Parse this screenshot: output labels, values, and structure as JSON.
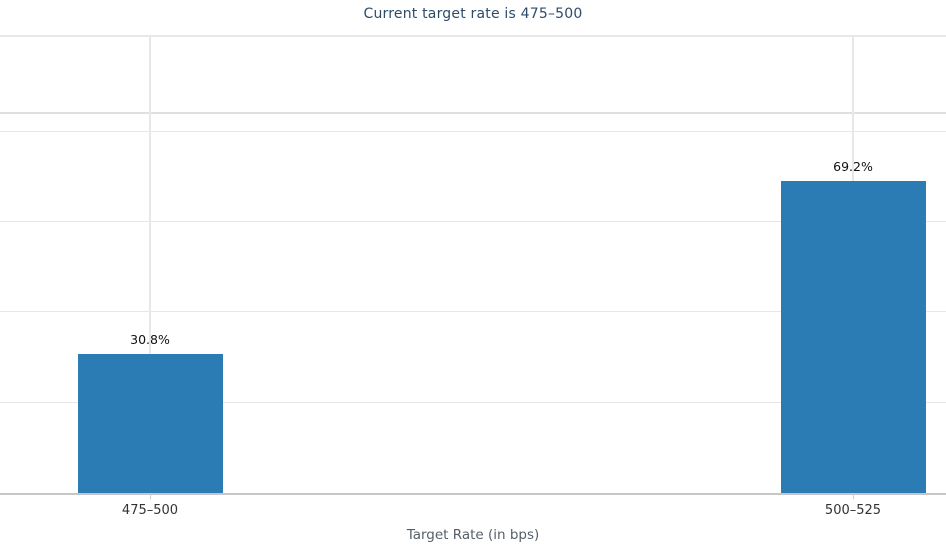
{
  "chart_data": {
    "type": "bar",
    "title": "Current target rate is 475–500",
    "xlabel": "Target Rate (in bps)",
    "ylabel": "",
    "categories": [
      "475–500",
      "500–525"
    ],
    "values": [
      30.8,
      69.2
    ],
    "data_labels": [
      "30.8%",
      "69.2%"
    ],
    "ylim": [
      0,
      101
    ],
    "ytick_values": [
      20,
      40,
      60,
      80
    ],
    "extra_gridline_value": 84,
    "yaxis_labels_visible": false,
    "grid": "horizontal gridlines at 20% steps plus vertical gridline at each category center",
    "legend": "none",
    "colors": {
      "bar": "#2b7cb5",
      "title_text": "#2d4b69",
      "tick_label_text": "#333333",
      "axis_title_text": "#555f69",
      "data_label_text": "#111111",
      "gridline": "#e6e6e6",
      "axis_line": "#c6c6c6",
      "tick_mark": "#cccccc"
    }
  }
}
